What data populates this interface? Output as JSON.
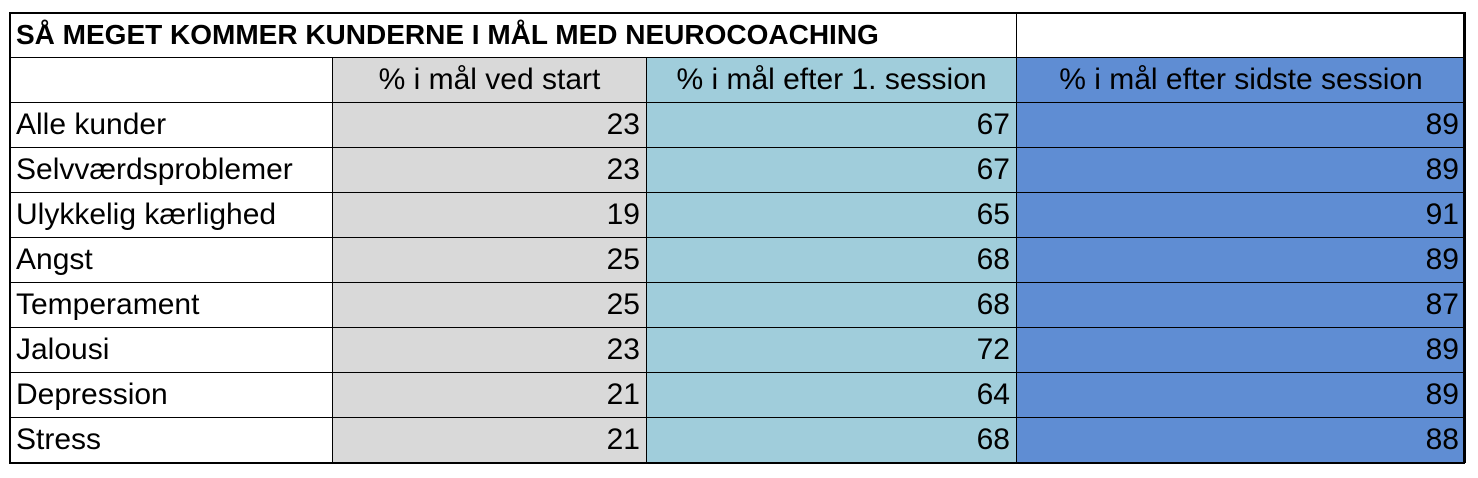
{
  "table": {
    "title": "SÅ MEGET KOMMER KUNDERNE I MÅL MED NEUROCOACHING",
    "headers": [
      "% i mål ved start",
      "% i mål efter 1. session",
      "% i mål efter sidste session"
    ],
    "rows": [
      [
        "Alle kunder",
        23,
        67,
        89
      ],
      [
        "Selvværdsproblemer",
        23,
        67,
        89
      ],
      [
        "Ulykkelig kærlighed",
        19,
        65,
        91
      ],
      [
        "Angst",
        25,
        68,
        89
      ],
      [
        "Temperament",
        25,
        68,
        87
      ],
      [
        "Jalousi",
        23,
        72,
        89
      ],
      [
        "Depression",
        21,
        64,
        89
      ],
      [
        "Stress",
        21,
        68,
        88
      ]
    ]
  }
}
